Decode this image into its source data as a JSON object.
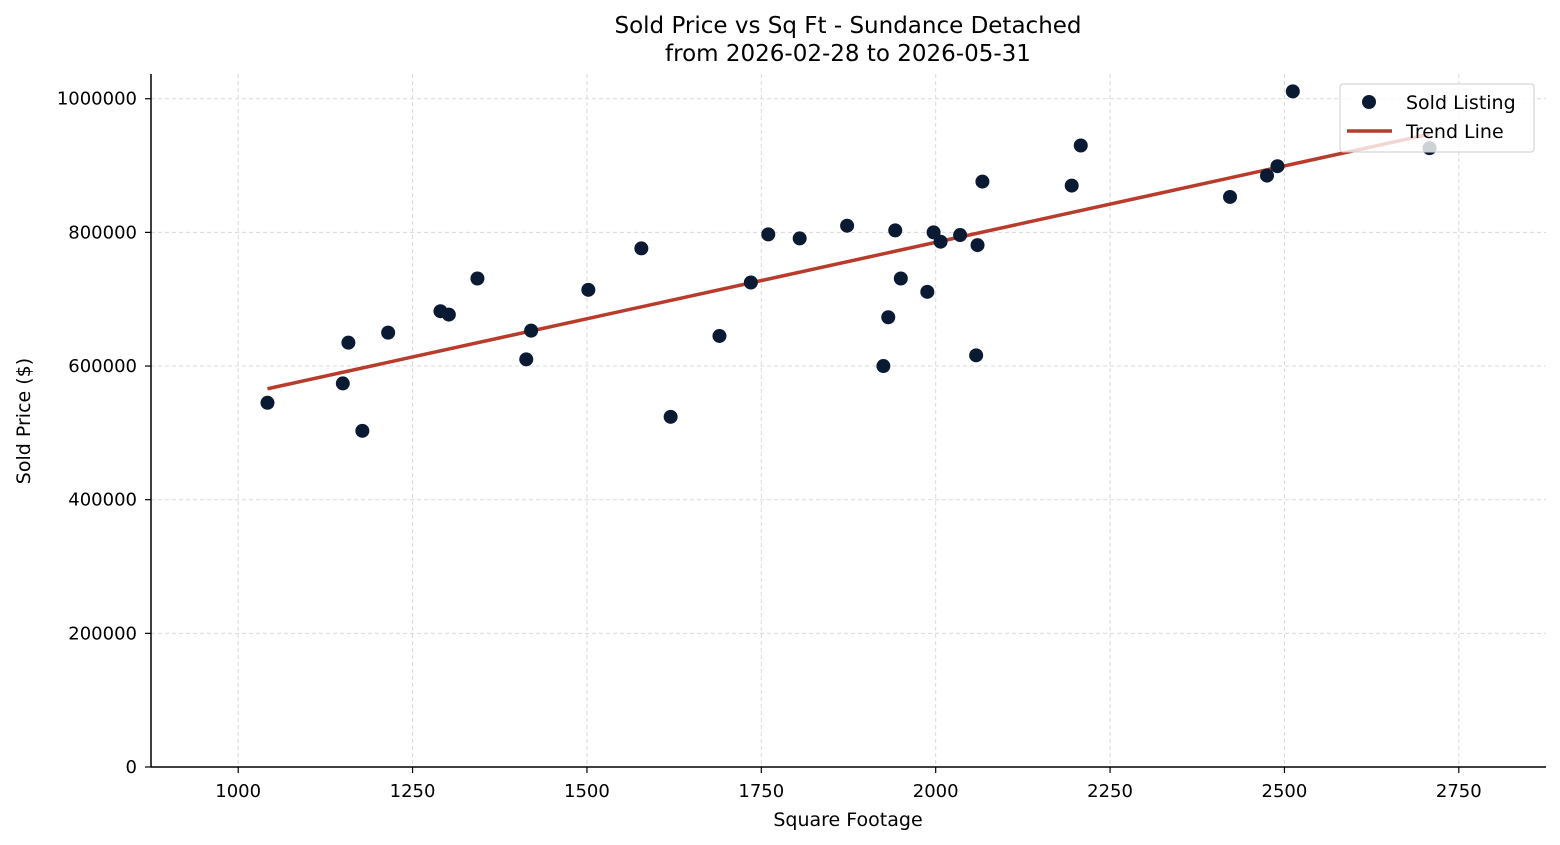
{
  "chart_data": {
    "type": "scatter",
    "title": "Sold Price vs Sq Ft - Sundance Detached",
    "subtitle": "from 2026-02-28 to 2026-05-31",
    "xlabel": "Square Footage",
    "ylabel": "Sold Price ($)",
    "xlim": [
      875,
      2875
    ],
    "ylim": [
      0,
      1037000
    ],
    "xticks": [
      1000,
      1250,
      1500,
      1750,
      2000,
      2250,
      2500,
      2750
    ],
    "yticks": [
      0,
      200000,
      400000,
      600000,
      800000,
      1000000
    ],
    "grid": true,
    "legend_position": "top-right",
    "colors": {
      "points": "#0b1a33",
      "trend": "#b83b2c"
    },
    "series": [
      {
        "name": "Sold Listing",
        "kind": "scatter",
        "points": [
          [
            1042,
            545000
          ],
          [
            1150,
            574000
          ],
          [
            1158,
            635000
          ],
          [
            1178,
            503000
          ],
          [
            1215,
            650000
          ],
          [
            1290,
            682000
          ],
          [
            1302,
            677000
          ],
          [
            1343,
            731000
          ],
          [
            1413,
            610000
          ],
          [
            1420,
            653000
          ],
          [
            1502,
            714000
          ],
          [
            1578,
            776000
          ],
          [
            1620,
            524000
          ],
          [
            1690,
            645000
          ],
          [
            1735,
            725000
          ],
          [
            1760,
            797000
          ],
          [
            1805,
            791000
          ],
          [
            1873,
            810000
          ],
          [
            1925,
            600000
          ],
          [
            1932,
            673000
          ],
          [
            1942,
            803000
          ],
          [
            1950,
            731000
          ],
          [
            1988,
            711000
          ],
          [
            1997,
            800000
          ],
          [
            2007,
            786000
          ],
          [
            2035,
            796000
          ],
          [
            2058,
            616000
          ],
          [
            2060,
            781000
          ],
          [
            2067,
            876000
          ],
          [
            2195,
            870000
          ],
          [
            2208,
            930000
          ],
          [
            2422,
            853000
          ],
          [
            2475,
            885000
          ],
          [
            2490,
            899000
          ],
          [
            2512,
            1011000
          ],
          [
            2708,
            926000
          ]
        ]
      },
      {
        "name": "Trend Line",
        "kind": "line",
        "points": [
          [
            1042,
            566000
          ],
          [
            2708,
            947000
          ]
        ]
      }
    ]
  }
}
